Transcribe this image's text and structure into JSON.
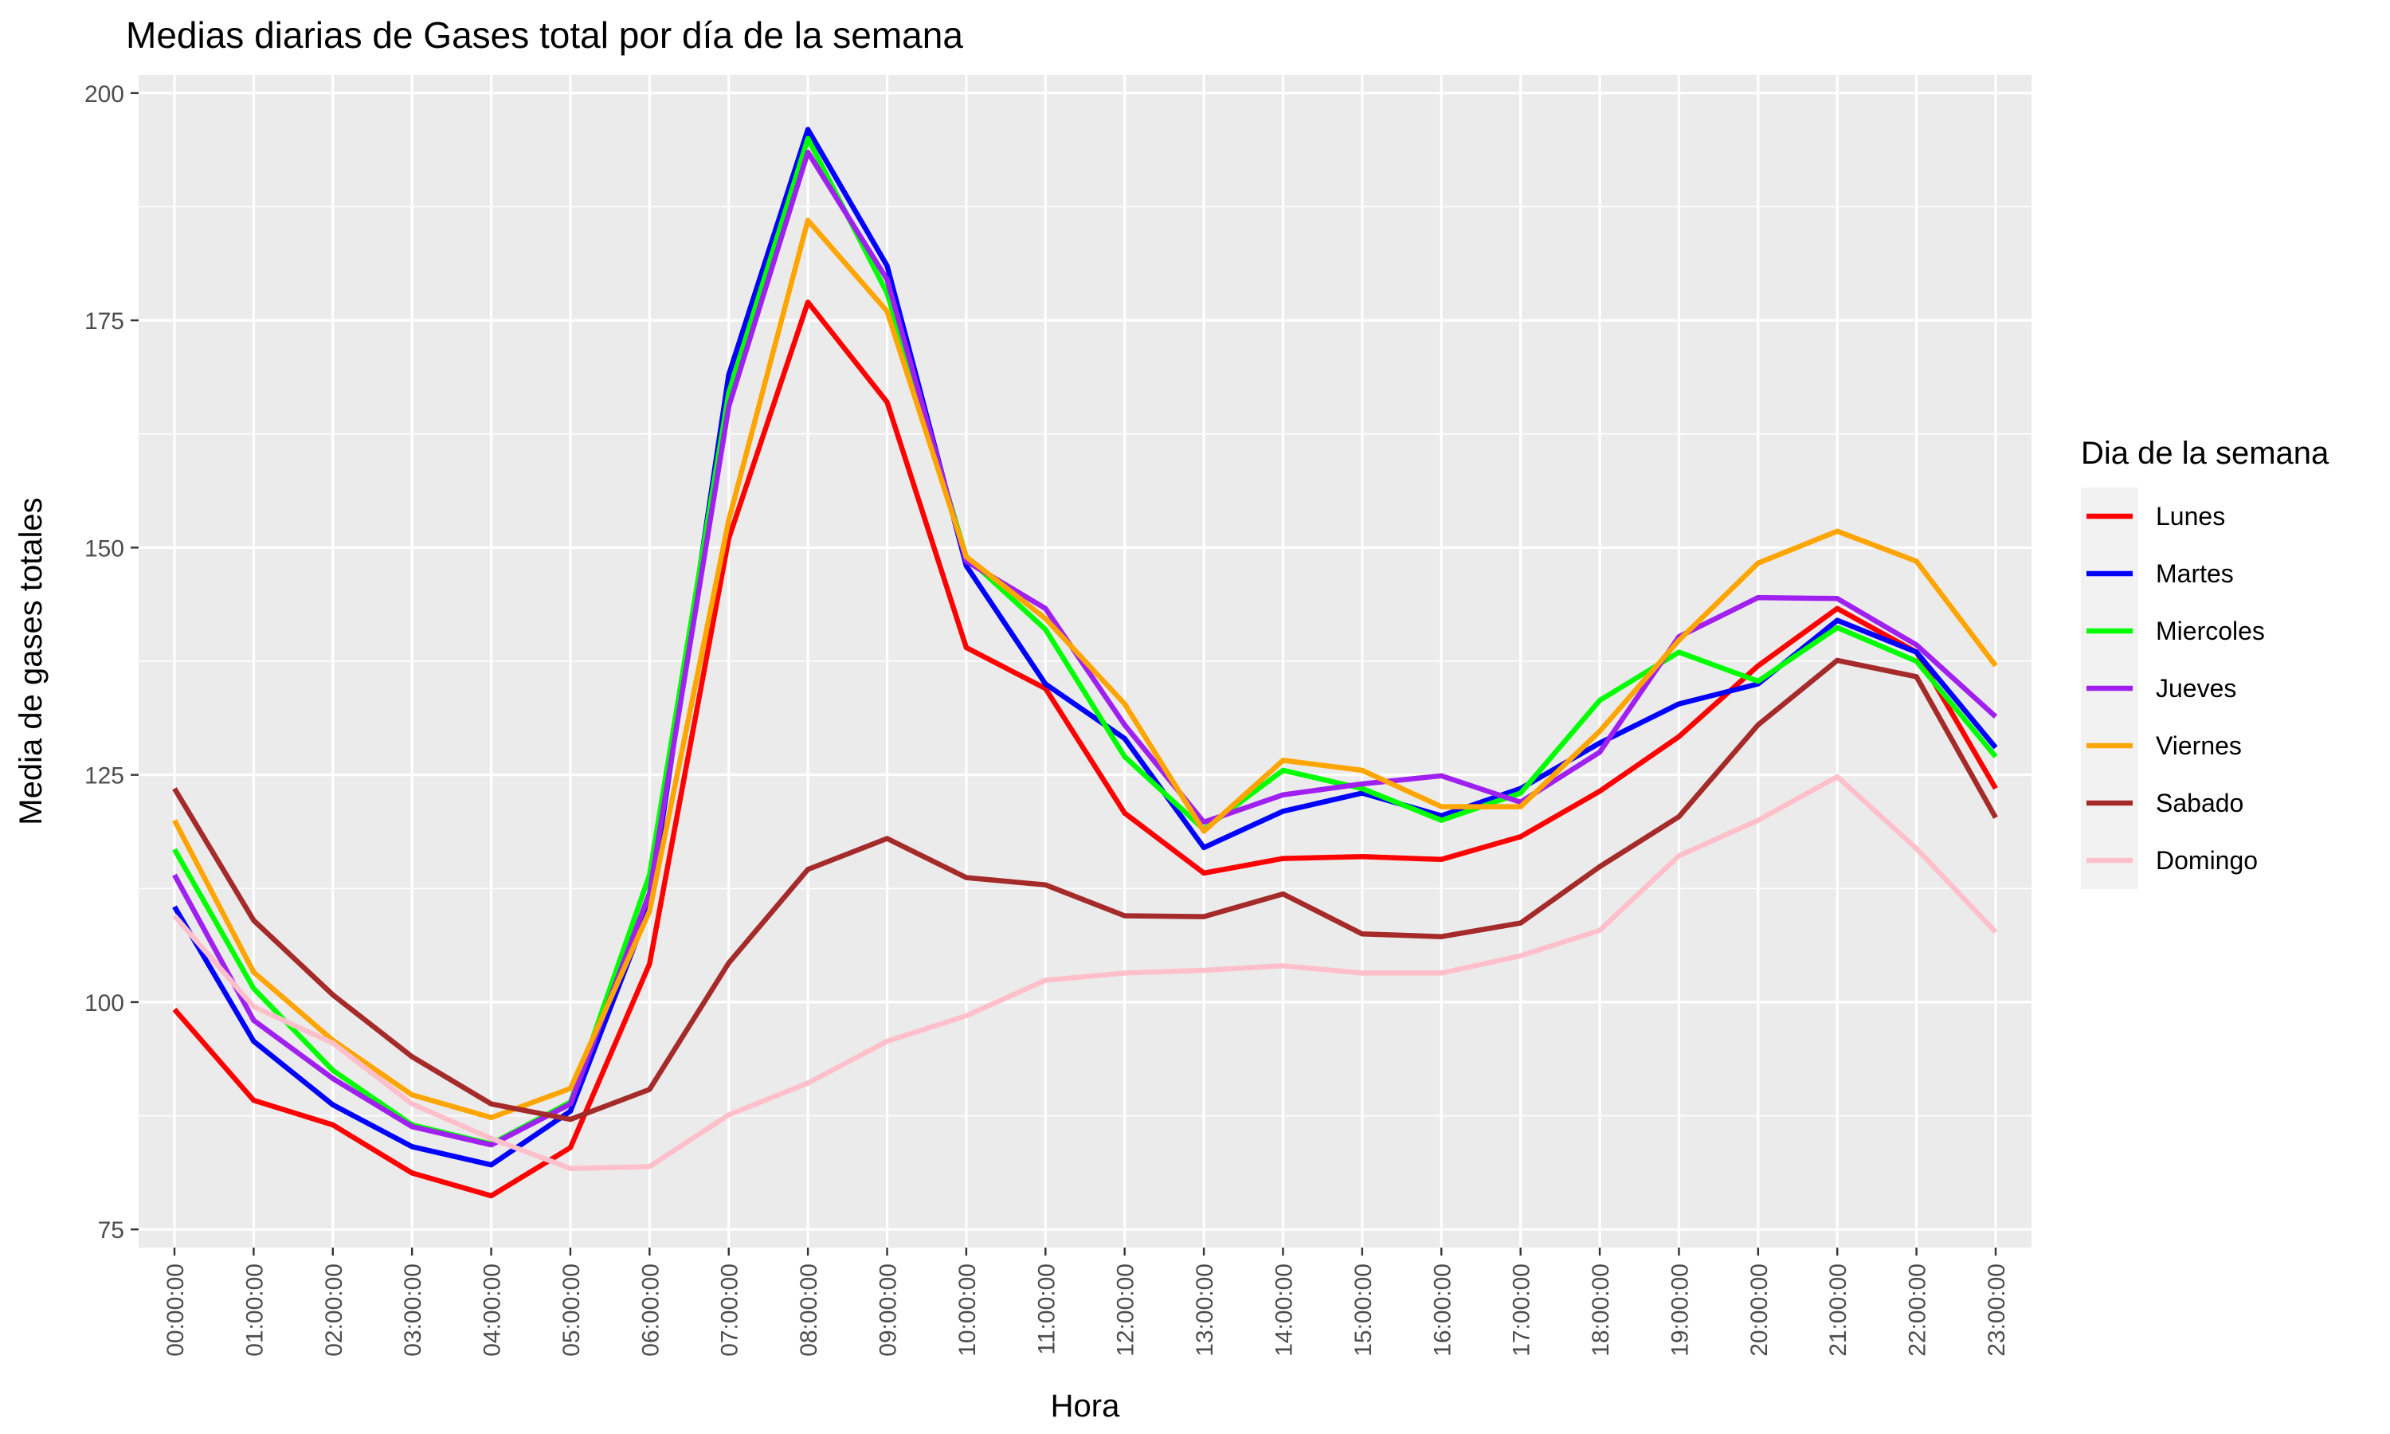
{
  "chart_data": {
    "type": "line",
    "title": "Medias diarias de Gases total por día de la semana",
    "xlabel": "Hora",
    "ylabel": "Media de gases totales",
    "ylim": [
      73,
      202
    ],
    "yticks": [
      75,
      100,
      125,
      150,
      175,
      200
    ],
    "grid": true,
    "legend_position": "right",
    "legend_title": "Dia de la semana",
    "x": [
      "00:00:00",
      "01:00:00",
      "02:00:00",
      "03:00:00",
      "04:00:00",
      "05:00:00",
      "06:00:00",
      "07:00:00",
      "08:00:00",
      "09:00:00",
      "10:00:00",
      "11:00:00",
      "12:00:00",
      "13:00:00",
      "14:00:00",
      "15:00:00",
      "16:00:00",
      "17:00:00",
      "18:00:00",
      "19:00:00",
      "20:00:00",
      "21:00:00",
      "22:00:00",
      "23:00:00"
    ],
    "series": [
      {
        "name": "Lunes",
        "color": "#ff0000",
        "values": [
          99.2,
          89.2,
          86.5,
          81.2,
          78.7,
          84.0,
          104.2,
          151.0,
          177.0,
          166.0,
          139.0,
          134.5,
          120.8,
          114.2,
          115.8,
          116.0,
          115.7,
          118.2,
          123.2,
          129.2,
          137.0,
          143.3,
          138.5,
          123.5
        ]
      },
      {
        "name": "Martes",
        "color": "#0000ff",
        "values": [
          110.5,
          95.7,
          88.7,
          84.1,
          82.1,
          88.0,
          110.5,
          169.0,
          196.0,
          181.0,
          148.0,
          135.0,
          129.0,
          117.0,
          121.0,
          123.0,
          120.5,
          123.5,
          128.5,
          132.8,
          135.0,
          142.0,
          138.5,
          128.0
        ]
      },
      {
        "name": "Miercoles",
        "color": "#00ff00",
        "values": [
          116.8,
          101.5,
          92.5,
          86.5,
          84.4,
          89.0,
          114.0,
          167.0,
          195.0,
          178.0,
          149.0,
          141.0,
          127.0,
          119.0,
          125.5,
          123.5,
          120.0,
          123.0,
          133.2,
          138.5,
          135.3,
          141.2,
          137.5,
          127.0
        ]
      },
      {
        "name": "Jueves",
        "color": "#a020f0",
        "values": [
          114.0,
          98.0,
          91.6,
          86.3,
          84.3,
          88.8,
          112.0,
          165.5,
          193.5,
          179.5,
          148.5,
          143.3,
          130.5,
          119.8,
          122.8,
          124.0,
          124.9,
          122.0,
          127.5,
          140.2,
          144.5,
          144.4,
          139.3,
          131.4
        ]
      },
      {
        "name": "Viernes",
        "color": "#ffa500",
        "values": [
          120.0,
          103.3,
          95.8,
          89.8,
          87.3,
          90.5,
          110.0,
          153.0,
          186.0,
          176.0,
          149.0,
          142.2,
          132.8,
          118.8,
          126.6,
          125.5,
          121.5,
          121.5,
          129.8,
          139.8,
          148.3,
          151.8,
          148.5,
          137.0
        ]
      },
      {
        "name": "Sabado",
        "color": "#a52a2a",
        "values": [
          123.5,
          109.0,
          100.8,
          94.0,
          88.8,
          87.1,
          90.4,
          104.3,
          114.6,
          118.0,
          113.7,
          112.9,
          109.5,
          109.4,
          111.9,
          107.5,
          107.2,
          108.7,
          114.9,
          120.4,
          130.5,
          137.6,
          135.8,
          120.3
        ]
      },
      {
        "name": "Domingo",
        "color": "#ffc0cb",
        "values": [
          109.5,
          99.5,
          95.5,
          88.8,
          85.0,
          81.7,
          81.9,
          87.6,
          91.1,
          95.7,
          98.5,
          102.4,
          103.2,
          103.5,
          104.0,
          103.2,
          103.2,
          105.1,
          107.9,
          116.1,
          120.0,
          124.8,
          116.9,
          107.7
        ]
      }
    ]
  }
}
